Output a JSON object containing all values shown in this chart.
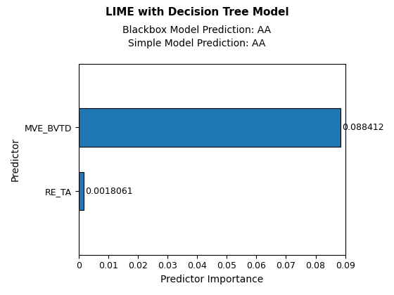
{
  "title": "LIME with Decision Tree Model",
  "subtitle1": "Blackbox Model Prediction: AA",
  "subtitle2": "Simple Model Prediction: AA",
  "xlabel": "Predictor Importance",
  "ylabel": "Predictor",
  "categories": [
    "RE_TA",
    "MVE_BVTD"
  ],
  "values": [
    0.0018061,
    0.088412
  ],
  "bar_color": "#1f77b4",
  "bar_edgecolor": "#000000",
  "xlim": [
    0,
    0.09
  ],
  "xticks": [
    0,
    0.01,
    0.02,
    0.03,
    0.04,
    0.05,
    0.06,
    0.07,
    0.08,
    0.09
  ],
  "value_labels": [
    "0.0018061",
    "0.088412"
  ],
  "title_fontsize": 11,
  "subtitle_fontsize": 10,
  "axis_label_fontsize": 10,
  "tick_fontsize": 9,
  "value_label_fontsize": 9,
  "bar_positions": [
    1,
    2
  ],
  "ylim": [
    0,
    3
  ]
}
